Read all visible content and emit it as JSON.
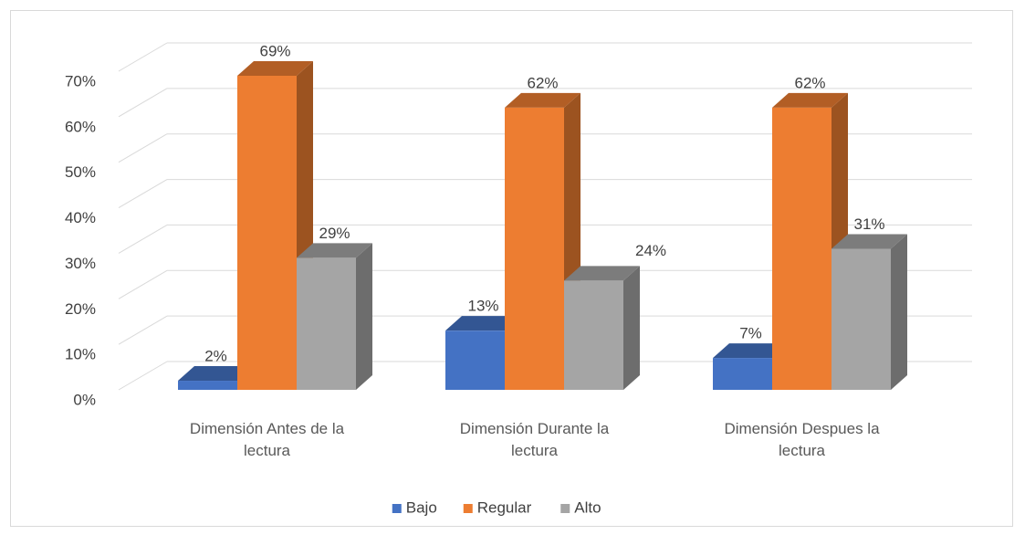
{
  "chart_data": {
    "type": "bar3d",
    "categories": [
      "Dimensión Antes de la lectura",
      "Dimensión Durante  la lectura",
      "Dimensión Despues la lectura"
    ],
    "series": [
      {
        "name": "Bajo",
        "color": "#4472c4",
        "values": [
          2,
          13,
          7
        ],
        "value_labels": [
          "2%",
          "13%",
          "7%"
        ]
      },
      {
        "name": "Regular",
        "color": "#ed7d31",
        "values": [
          69,
          62,
          62
        ],
        "value_labels": [
          "69%",
          "62%",
          "62%"
        ]
      },
      {
        "name": "Alto",
        "color": "#a5a5a5",
        "values": [
          29,
          24,
          31
        ],
        "value_labels": [
          "29%",
          "24%",
          "31%"
        ]
      }
    ],
    "ylim": [
      0,
      70
    ],
    "yticks": [
      {
        "value": 0,
        "label": "0%"
      },
      {
        "value": 10,
        "label": "10%"
      },
      {
        "value": 20,
        "label": "20%"
      },
      {
        "value": 30,
        "label": "30%"
      },
      {
        "value": 40,
        "label": "40%"
      },
      {
        "value": 50,
        "label": "50%"
      },
      {
        "value": 60,
        "label": "60%"
      },
      {
        "value": 70,
        "label": "70%"
      }
    ],
    "grid": true,
    "legend": "bottom"
  }
}
